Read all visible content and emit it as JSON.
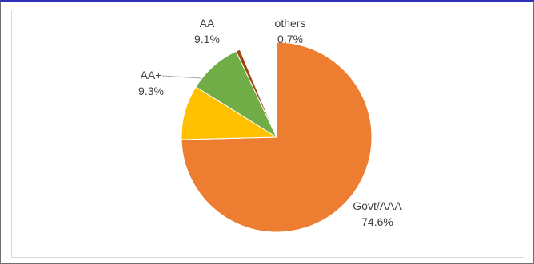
{
  "chart_data": {
    "type": "pie",
    "title": "",
    "legend": "none",
    "start": "top",
    "direction": "clockwise",
    "slices": [
      {
        "label": "Govt/AAA",
        "value": 74.6,
        "value_label": "74.6%",
        "color": "#ed7d31"
      },
      {
        "label": "AA+",
        "value": 9.3,
        "value_label": "9.3%",
        "color": "#ffc000"
      },
      {
        "label": "AA",
        "value": 9.1,
        "value_label": "9.1%",
        "color": "#70ad47"
      },
      {
        "label": "others",
        "value": 0.7,
        "value_label": "0.7%",
        "color": "#9e480e"
      }
    ]
  }
}
